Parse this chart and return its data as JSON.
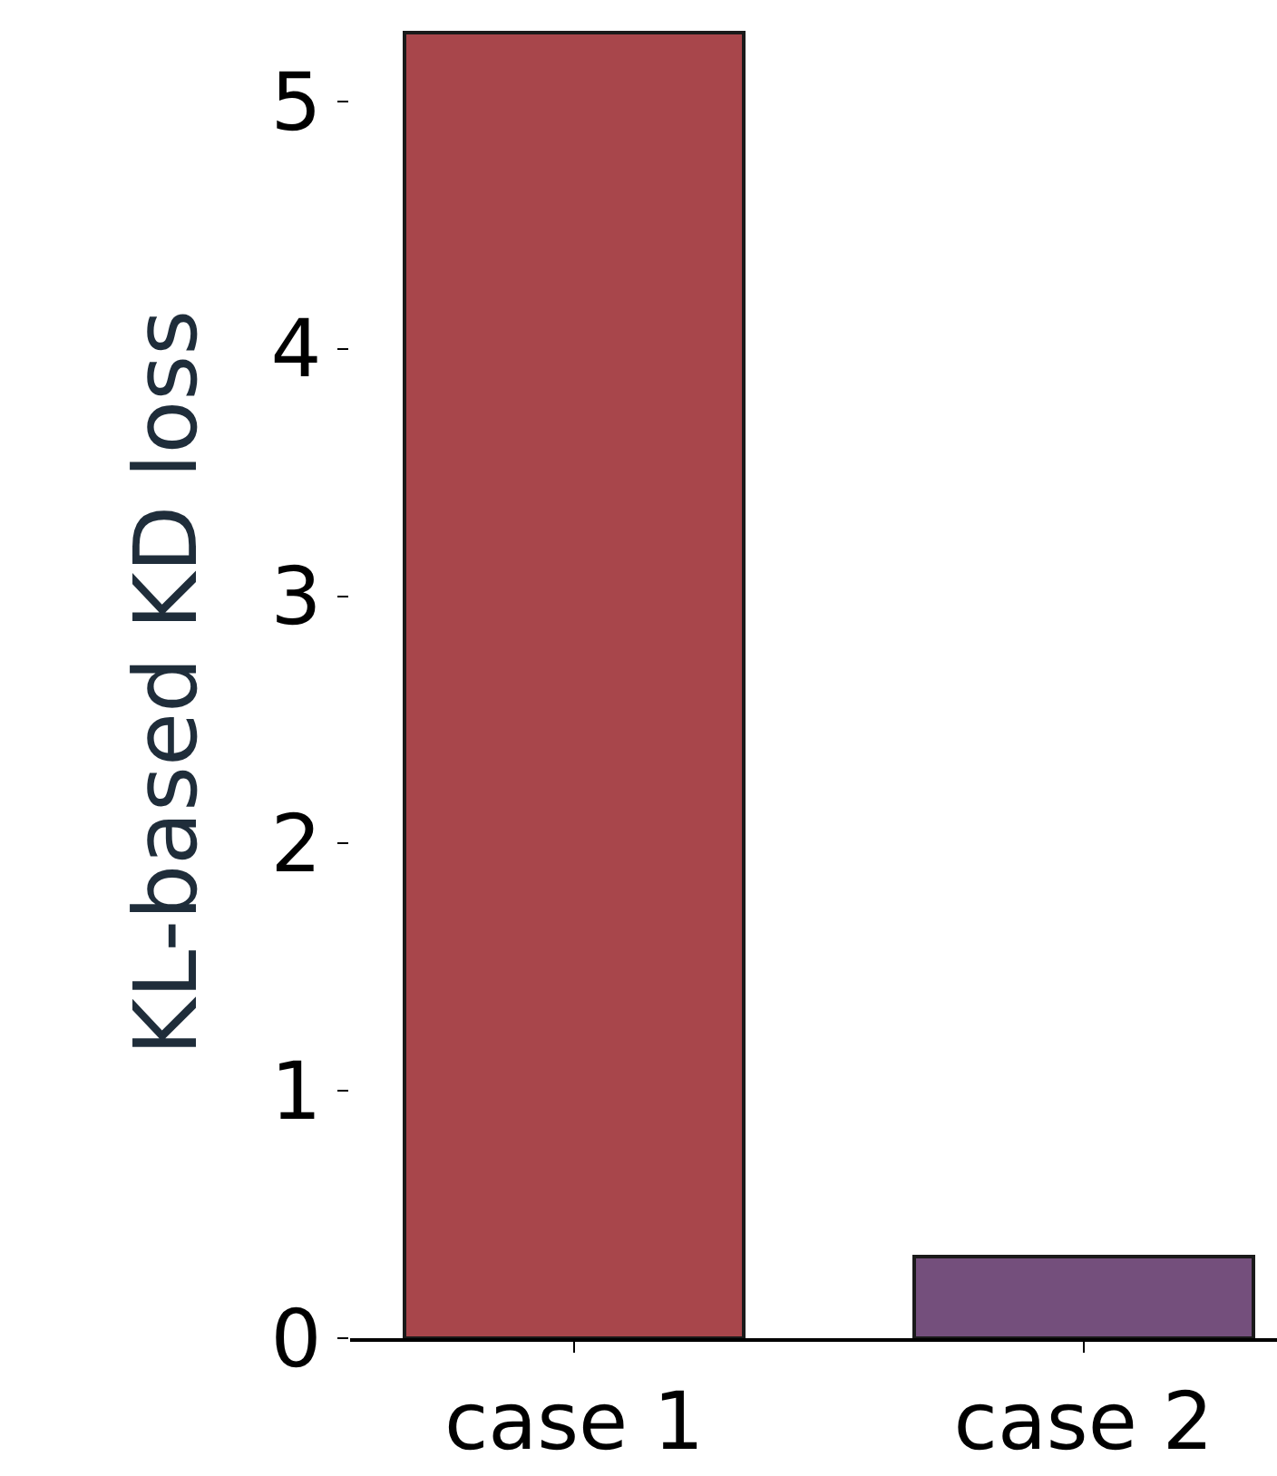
{
  "chart_data": {
    "type": "bar",
    "ylabel": "KL-based KD loss",
    "categories": [
      "case 1",
      "case 2"
    ],
    "values": [
      5.28,
      0.33
    ],
    "colors": [
      "#a8464b",
      "#744f7c"
    ],
    "ylim": [
      0,
      5.3
    ],
    "yticks": [
      0,
      1,
      2,
      3,
      4,
      5
    ]
  }
}
